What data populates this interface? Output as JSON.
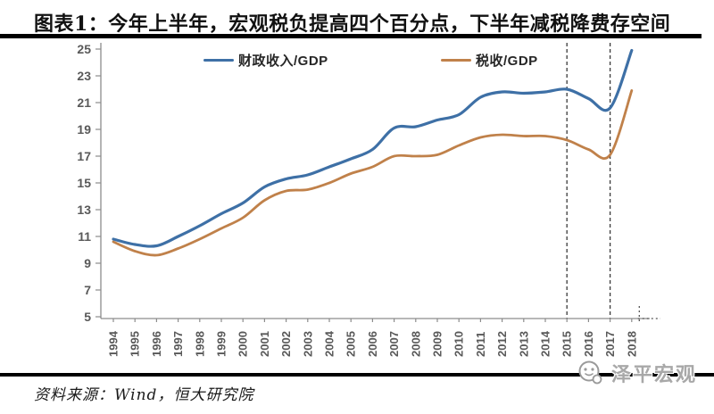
{
  "page": {
    "title": "图表1：今年上半年，宏观税负提高四个百分点，下半年减税降费存空间",
    "source_note": "资料来源：Wind，恒大研究院",
    "watermark_text": "泽平宏观"
  },
  "chart_data": {
    "type": "line",
    "figure_label": "图表1",
    "title": "今年上半年，宏观税负提高四个百分点，下半年减税降费存空间",
    "x": [
      1994,
      1995,
      1996,
      1997,
      1998,
      1999,
      2000,
      2001,
      2002,
      2003,
      2004,
      2005,
      2006,
      2007,
      2008,
      2009,
      2010,
      2011,
      2012,
      2013,
      2014,
      2015,
      2016,
      2017,
      2018
    ],
    "xlabel": "",
    "ylabel": "",
    "ylim": [
      5,
      25
    ],
    "yticks": [
      5,
      7,
      9,
      11,
      13,
      15,
      17,
      19,
      21,
      23,
      25
    ],
    "grid": false,
    "legend_position": "top",
    "line_style": "smooth",
    "annotations": {
      "dashed_vertical_lines_at_x": [
        2015,
        2017
      ],
      "x_axis_truncation_dots_after": 2018
    },
    "series": [
      {
        "name": "财政收入/GDP",
        "key": "fiscal-revenue-to-gdp",
        "color": "#3E70A6",
        "values": [
          10.8,
          10.4,
          10.3,
          11.0,
          11.8,
          12.7,
          13.5,
          14.7,
          15.3,
          15.6,
          16.2,
          16.8,
          17.5,
          19.1,
          19.2,
          19.7,
          20.1,
          21.4,
          21.8,
          21.7,
          21.8,
          22.0,
          21.3,
          20.6,
          24.9
        ]
      },
      {
        "name": "税收/GDP",
        "key": "tax-to-gdp",
        "color": "#C0814A",
        "values": [
          10.6,
          9.9,
          9.6,
          10.1,
          10.8,
          11.6,
          12.4,
          13.7,
          14.4,
          14.5,
          15.0,
          15.7,
          16.2,
          17.0,
          17.0,
          17.1,
          17.8,
          18.4,
          18.6,
          18.5,
          18.5,
          18.2,
          17.5,
          17.1,
          21.9
        ]
      }
    ],
    "colors": {
      "axis": "#8c8c8c",
      "tick_label": "#595959",
      "dashed_line": "#3a3a3a"
    }
  }
}
